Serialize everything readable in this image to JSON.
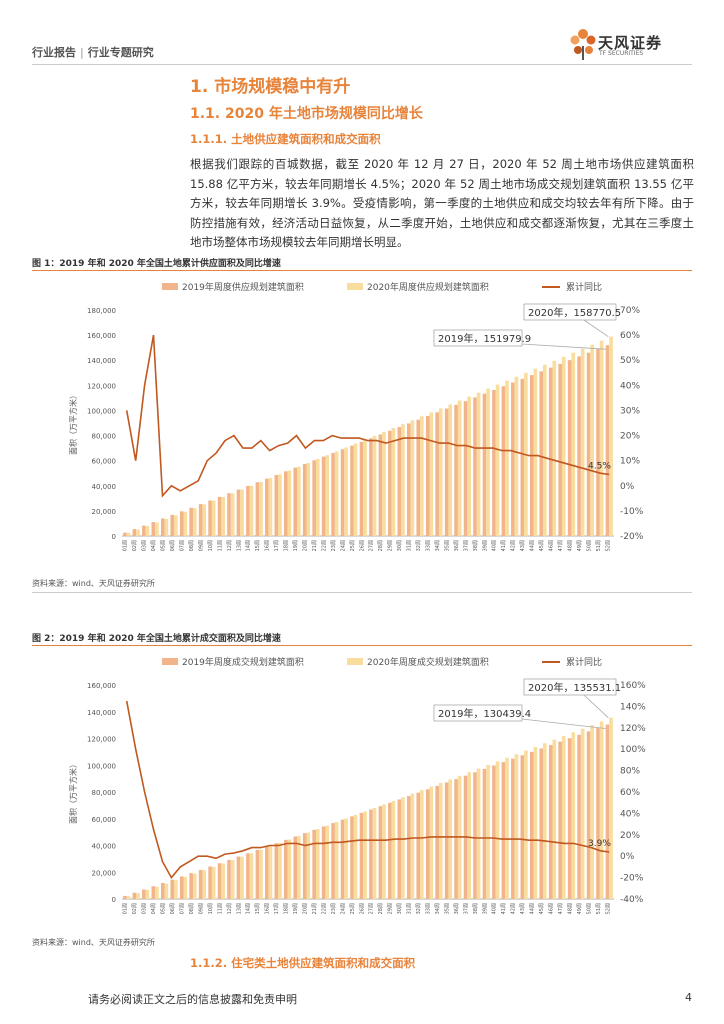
{
  "header": {
    "section": "行业报告",
    "subsection": "行业专题研究",
    "brand_cn": "天风证券",
    "brand_en": "TF SECURITIES"
  },
  "headings": {
    "h1": "1. 市场规模稳中有升",
    "h2": "1.1. 2020 年土地市场规模同比增长",
    "h3": "1.1.1. 土地供应建筑面积和成交面积",
    "h4": "1.1.2. 住宅类土地供应建筑面积和成交面积"
  },
  "paragraph": "根据我们跟踪的百城数据，截至 2020 年 12 月 27 日，2020 年 52 周土地市场供应建筑面积 15.88 亿平方米，较去年同期增长 4.5%；2020 年 52 周土地市场成交规划建筑面积 13.55 亿平方米，较去年同期增长 3.9%。受疫情影响，第一季度的土地供应和成交均较去年有所下降。由于防控措施有效，经济活动日益恢复，从二季度开始，土地供应和成交都逐渐恢复，尤其在三季度土地市场整体市场规模较去年同期增长明显。",
  "footer": {
    "disclaimer": "请务必阅读正文之后的信息披露和免责申明",
    "page": "4"
  },
  "colors": {
    "accent": "#e8833a",
    "bar2019": "#f2b48a",
    "bar2020": "#f9dd9e",
    "line": "#c0581f"
  },
  "chart_data": [
    {
      "type": "bar",
      "title": "图 1：2019 年和 2020 年全国土地累计供应面积及同比增速",
      "source": "资料来源：wind、天风证券研究所",
      "ylabel": "面积（万平方米）",
      "ylim": [
        0,
        180000
      ],
      "y_ticks": [
        "0",
        "20,000",
        "40,000",
        "60,000",
        "80,000",
        "100,000",
        "120,000",
        "140,000",
        "160,000",
        "180,000"
      ],
      "y2lim": [
        -20,
        70
      ],
      "y2_ticks": [
        "-20%",
        "-10%",
        "0%",
        "10%",
        "20%",
        "30%",
        "40%",
        "50%",
        "60%",
        "70%"
      ],
      "legend": [
        "2019年周度供应规划建筑面积",
        "2020年周度供应规划建筑面积",
        "累计同比"
      ],
      "callouts": [
        "2020年，158770.5",
        "2019年，151979.9"
      ],
      "end_label": "4.5%",
      "final_2019": 151979.9,
      "final_2020": 158770.5,
      "yoy": [
        30,
        10,
        40,
        60,
        -4,
        0,
        -2,
        0,
        2,
        10,
        13,
        18,
        20,
        15,
        15,
        18,
        14,
        16,
        17,
        20,
        15,
        18,
        18,
        20,
        19,
        19,
        19,
        18,
        18,
        17,
        18,
        19,
        19,
        19,
        18,
        17,
        17,
        16,
        16,
        15,
        15,
        15,
        14,
        14,
        13,
        12,
        12,
        11,
        10,
        9,
        8,
        7,
        6,
        5,
        4.5
      ]
    },
    {
      "type": "bar",
      "title": "图 2：2019 年和 2020 年全国土地累计成交面积及同比增速",
      "source": "资料来源：wind、天风证券研究所",
      "ylabel": "面积（万平方米）",
      "ylim": [
        0,
        160000
      ],
      "y_ticks": [
        "0",
        "20,000",
        "40,000",
        "60,000",
        "80,000",
        "100,000",
        "120,000",
        "140,000",
        "160,000"
      ],
      "y2lim": [
        -40,
        160
      ],
      "y2_ticks": [
        "-40%",
        "-20%",
        "0%",
        "20%",
        "40%",
        "60%",
        "80%",
        "100%",
        "120%",
        "140%",
        "160%"
      ],
      "legend": [
        "2019年周度成交规划建筑面积",
        "2020年周度成交规划建筑面积",
        "累计同比"
      ],
      "callouts": [
        "2020年，135531.1",
        "2019年，130439.4"
      ],
      "end_label": "3.9%",
      "final_2019": 130439.4,
      "final_2020": 135531.1,
      "yoy": [
        145,
        100,
        60,
        25,
        -5,
        -20,
        -10,
        -5,
        0,
        0,
        -2,
        2,
        3,
        5,
        8,
        8,
        10,
        10,
        12,
        12,
        10,
        12,
        12,
        13,
        13,
        14,
        15,
        15,
        15,
        15,
        16,
        16,
        17,
        17,
        18,
        18,
        18,
        18,
        18,
        17,
        17,
        17,
        16,
        16,
        16,
        15,
        15,
        14,
        13,
        12,
        12,
        10,
        8,
        5,
        3.9
      ]
    }
  ]
}
